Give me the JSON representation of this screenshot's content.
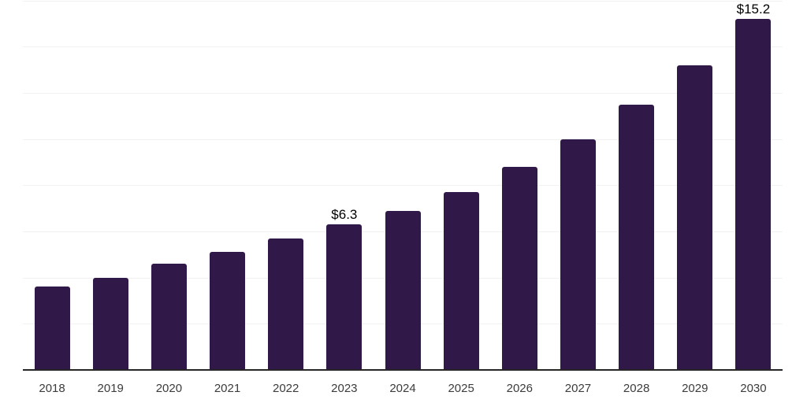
{
  "chart_data": {
    "type": "bar",
    "categories": [
      "2018",
      "2019",
      "2020",
      "2021",
      "2022",
      "2023",
      "2024",
      "2025",
      "2026",
      "2027",
      "2028",
      "2029",
      "2030"
    ],
    "values": [
      3.6,
      4.0,
      4.6,
      5.1,
      5.7,
      6.3,
      6.9,
      7.7,
      8.8,
      10.0,
      11.5,
      13.2,
      15.2
    ],
    "data_labels": [
      {
        "category": "2023",
        "text": "$6.3"
      },
      {
        "category": "2030",
        "text": "$15.2"
      }
    ],
    "title": "",
    "xlabel": "",
    "ylabel": "",
    "ylim": [
      0,
      16
    ],
    "gridline_step": 2,
    "grid": "horizontal",
    "legend_position": "none",
    "y_axis_labels_visible": false,
    "colors": {
      "bar": "#301848",
      "gridline": "#f1f1f1",
      "axis_line": "#262626",
      "tick_label": "#3c3c3c",
      "data_label": "#000000",
      "background": "#ffffff"
    }
  }
}
